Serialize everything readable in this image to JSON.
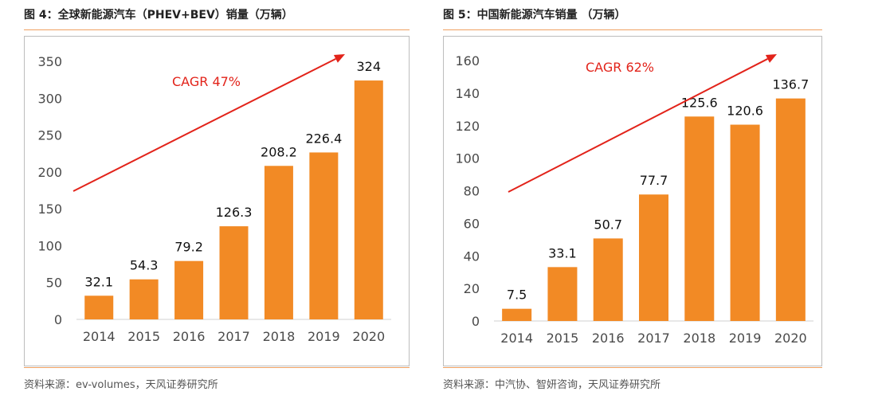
{
  "colors": {
    "bar": "#f28a25",
    "trend": "#e2231a",
    "rule": "#f0a060"
  },
  "chart_data": [
    {
      "type": "bar",
      "title": "图 4：全球新能源汽车（PHEV+BEV）销量（万辆）",
      "categories": [
        "2014",
        "2015",
        "2016",
        "2017",
        "2018",
        "2019",
        "2020"
      ],
      "values": [
        32.1,
        54.3,
        79.2,
        126.3,
        208.2,
        226.4,
        324
      ],
      "value_labels": [
        "32.1",
        "54.3",
        "79.2",
        "126.3",
        "208.2",
        "226.4",
        "324"
      ],
      "ylim": [
        0,
        350
      ],
      "yticks": [
        0,
        50,
        100,
        150,
        200,
        250,
        300,
        350
      ],
      "grid": false,
      "annotation": "CAGR 47%",
      "source": "资料来源：ev-volumes，天风证券研究所"
    },
    {
      "type": "bar",
      "title": "图 5：中国新能源汽车销量  （万辆）",
      "categories": [
        "2014",
        "2015",
        "2016",
        "2017",
        "2018",
        "2019",
        "2020"
      ],
      "values": [
        7.5,
        33.1,
        50.7,
        77.7,
        125.6,
        120.6,
        136.7
      ],
      "value_labels": [
        "7.5",
        "33.1",
        "50.7",
        "77.7",
        "125.6",
        "120.6",
        "136.7"
      ],
      "ylim": [
        0,
        160
      ],
      "yticks": [
        0,
        20,
        40,
        60,
        80,
        100,
        120,
        140,
        160
      ],
      "grid": false,
      "annotation": "CAGR 62%",
      "source": "资料来源：中汽协、智妍咨询，天风证券研究所"
    }
  ]
}
